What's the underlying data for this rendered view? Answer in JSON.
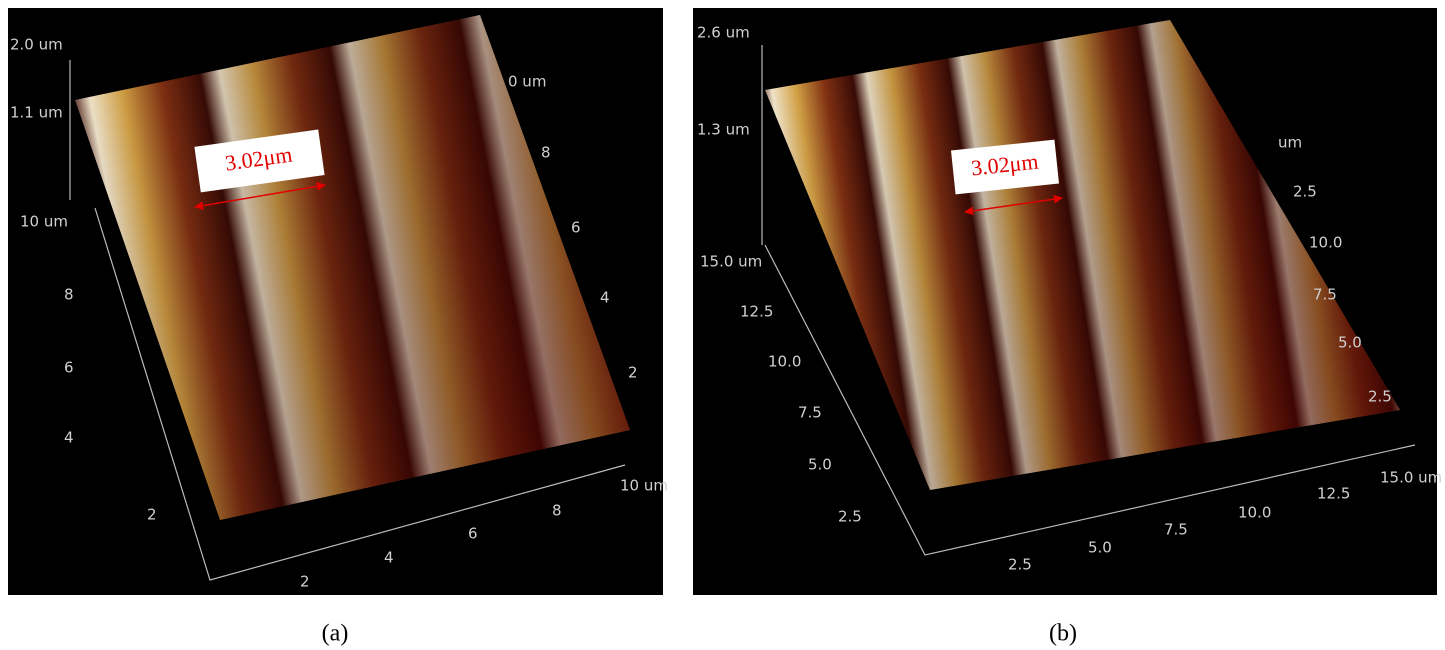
{
  "panels": [
    {
      "caption": "(a)",
      "annotation": "3.02μm",
      "z_labels": [
        "2.0 um",
        "1.1 um"
      ],
      "left_labels": [
        "10 um",
        "8",
        "6",
        "4",
        "2"
      ],
      "bottom_labels": [
        "2",
        "4",
        "6",
        "8",
        "10 um"
      ],
      "right_labels": [
        "0 um",
        "8",
        "6",
        "4",
        "2"
      ]
    },
    {
      "caption": "(b)",
      "annotation": "3.02μm",
      "z_labels": [
        "2.6 um",
        "1.3 um"
      ],
      "left_labels": [
        "15.0 um",
        "12.5",
        "10.0",
        "7.5",
        "5.0",
        "2.5"
      ],
      "bottom_labels": [
        "2.5",
        "5.0",
        "7.5",
        "10.0",
        "12.5",
        "15.0 um"
      ],
      "right_labels": [
        "um",
        "2.5",
        "10.0",
        "7.5",
        "5.0",
        "2.5"
      ]
    }
  ]
}
